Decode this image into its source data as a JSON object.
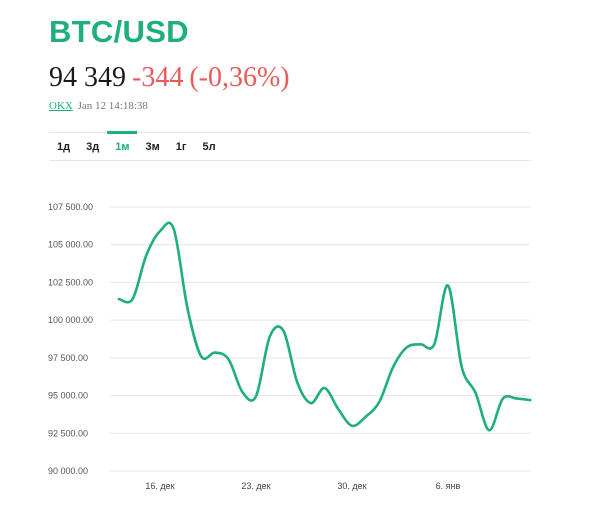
{
  "header": {
    "title": "BTC/USD",
    "price": "94 349",
    "change": "-344",
    "change_pct": "(-0,36%)",
    "source": "OKX",
    "timestamp": "Jan 12 14:18:38",
    "colors": {
      "accent": "#1fae7e",
      "negative": "#e85b5b"
    }
  },
  "tabs": [
    {
      "label": "1д",
      "active": false
    },
    {
      "label": "3д",
      "active": false
    },
    {
      "label": "1м",
      "active": true
    },
    {
      "label": "3м",
      "active": false
    },
    {
      "label": "1г",
      "active": false
    },
    {
      "label": "5л",
      "active": false
    }
  ],
  "chart_data": {
    "type": "line",
    "title": "",
    "xlabel": "",
    "ylabel": "",
    "ylim": [
      90000,
      107500
    ],
    "y_ticks": [
      90000,
      92500,
      95000,
      97500,
      100000,
      102500,
      105000,
      107500
    ],
    "y_tick_labels": [
      "90 000.00",
      "92 500.00",
      "95 000.00",
      "97 500.00",
      "100 000.00",
      "102 500.00",
      "105 000.00",
      "107 500.00"
    ],
    "x_tick_labels": [
      "16. дек",
      "23. дек",
      "30. дек",
      "6. янв"
    ],
    "x_tick_dates": [
      "2024-12-16",
      "2024-12-23",
      "2024-12-30",
      "2025-01-06"
    ],
    "grid": true,
    "color": "#1fae7e",
    "series": [
      {
        "x": [
          "2024-12-13",
          "2024-12-14",
          "2024-12-15",
          "2024-12-16",
          "2024-12-17",
          "2024-12-18",
          "2024-12-19",
          "2024-12-20",
          "2024-12-21",
          "2024-12-22",
          "2024-12-23",
          "2024-12-24",
          "2024-12-25",
          "2024-12-26",
          "2024-12-27",
          "2024-12-28",
          "2024-12-29",
          "2024-12-30",
          "2024-12-31",
          "2025-01-01",
          "2025-01-02",
          "2025-01-03",
          "2025-01-04",
          "2025-01-05",
          "2025-01-06",
          "2025-01-07",
          "2025-01-08",
          "2025-01-09",
          "2025-01-10",
          "2025-01-11",
          "2025-01-12"
        ],
        "values": [
          101400,
          101400,
          104300,
          105900,
          106050,
          100800,
          97600,
          97850,
          97400,
          95250,
          94950,
          98900,
          99300,
          95900,
          94500,
          95500,
          94100,
          93000,
          93600,
          94600,
          96900,
          98200,
          98400,
          98400,
          102300,
          96900,
          95200,
          92700,
          94800,
          94800,
          94700
        ]
      }
    ]
  }
}
